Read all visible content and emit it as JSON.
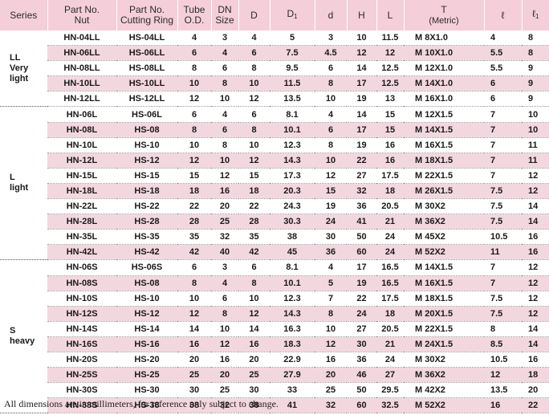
{
  "headers": {
    "series": "Series",
    "part_no_nut": [
      "Part No.",
      "Nut"
    ],
    "part_no_ring": [
      "Part No.",
      "Cutting Ring"
    ],
    "tube_od": [
      "Tube",
      "O.D."
    ],
    "dn_size": [
      "DN",
      "Size"
    ],
    "D": "D",
    "D1": {
      "base": "D",
      "sub": "1"
    },
    "d": "d",
    "H": "H",
    "L": "L",
    "T": [
      "T",
      "(Metric)"
    ],
    "l": "ℓ",
    "l1": {
      "base": "ℓ",
      "sub": "1"
    }
  },
  "groups": [
    {
      "series": [
        "LL",
        "Very",
        "light"
      ],
      "rows": [
        [
          "HN-04LL",
          "HS-04LL",
          "4",
          "3",
          "4",
          "5",
          "3",
          "10",
          "11.5",
          "M 8X1.0",
          "4",
          "8"
        ],
        [
          "HN-06LL",
          "HS-06LL",
          "6",
          "4",
          "6",
          "7.5",
          "4.5",
          "12",
          "12",
          "M 10X1.0",
          "5.5",
          "8"
        ],
        [
          "HN-08LL",
          "HS-08LL",
          "8",
          "6",
          "8",
          "9.5",
          "6",
          "14",
          "12.5",
          "M 12X1.0",
          "5.5",
          "9"
        ],
        [
          "HN-10LL",
          "HS-10LL",
          "10",
          "8",
          "10",
          "11.5",
          "8",
          "17",
          "12.5",
          "M 14X1.0",
          "6",
          "9"
        ],
        [
          "HN-12LL",
          "HS-12LL",
          "12",
          "10",
          "12",
          "13.5",
          "10",
          "19",
          "13",
          "M 16X1.0",
          "6",
          "9"
        ]
      ]
    },
    {
      "series": [
        "L",
        "light"
      ],
      "rows": [
        [
          "HN-06L",
          "HS-06L",
          "6",
          "4",
          "6",
          "8.1",
          "4",
          "14",
          "15",
          "M 12X1.5",
          "7",
          "10"
        ],
        [
          "HN-08L",
          "HS-08",
          "8",
          "6",
          "8",
          "10.1",
          "6",
          "17",
          "15",
          "M 14X1.5",
          "7",
          "10"
        ],
        [
          "HN-10L",
          "HS-10",
          "10",
          "8",
          "10",
          "12.3",
          "8",
          "19",
          "16",
          "M 16X1.5",
          "7",
          "11"
        ],
        [
          "HN-12L",
          "HS-12",
          "12",
          "10",
          "12",
          "14.3",
          "10",
          "22",
          "16",
          "M 18X1.5",
          "7",
          "11"
        ],
        [
          "HN-15L",
          "HS-15",
          "15",
          "12",
          "15",
          "17.3",
          "12",
          "27",
          "17.5",
          "M 22X1.5",
          "7",
          "12"
        ],
        [
          "HN-18L",
          "HS-18",
          "18",
          "16",
          "18",
          "20.3",
          "15",
          "32",
          "18",
          "M 26X1.5",
          "7.5",
          "12"
        ],
        [
          "HN-22L",
          "HS-22",
          "22",
          "20",
          "22",
          "24.3",
          "19",
          "36",
          "20.5",
          "M 30X2",
          "7.5",
          "14"
        ],
        [
          "HN-28L",
          "HS-28",
          "28",
          "25",
          "28",
          "30.3",
          "24",
          "41",
          "21",
          "M 36X2",
          "7.5",
          "14"
        ],
        [
          "HN-35L",
          "HS-35",
          "35",
          "32",
          "35",
          "38",
          "30",
          "50",
          "24",
          "M 45X2",
          "10.5",
          "16"
        ],
        [
          "HN-42L",
          "HS-42",
          "42",
          "40",
          "42",
          "45",
          "36",
          "60",
          "24",
          "M 52X2",
          "11",
          "16"
        ]
      ]
    },
    {
      "series": [
        "S",
        "heavy"
      ],
      "rows": [
        [
          "HN-06S",
          "HS-06S",
          "6",
          "3",
          "6",
          "8.1",
          "4",
          "17",
          "16.5",
          "M 14X1.5",
          "7",
          "12"
        ],
        [
          "HN-08S",
          "HS-08",
          "8",
          "4",
          "8",
          "10.1",
          "5",
          "19",
          "16.5",
          "M 16X1.5",
          "7",
          "12"
        ],
        [
          "HN-10S",
          "HS-10",
          "10",
          "6",
          "10",
          "12.3",
          "7",
          "22",
          "17.5",
          "M 18X1.5",
          "7.5",
          "12"
        ],
        [
          "HN-12S",
          "HS-12",
          "12",
          "8",
          "12",
          "14.3",
          "8",
          "24",
          "18",
          "M 20X1.5",
          "7.5",
          "12"
        ],
        [
          "HN-14S",
          "HS-14",
          "14",
          "10",
          "14",
          "16.3",
          "10",
          "27",
          "20.5",
          "M 22X1.5",
          "8",
          "14"
        ],
        [
          "HN-16S",
          "HS-16",
          "16",
          "12",
          "16",
          "18.3",
          "12",
          "30",
          "21",
          "M 24X1.5",
          "8.5",
          "14"
        ],
        [
          "HN-20S",
          "HS-20",
          "20",
          "16",
          "20",
          "22.9",
          "16",
          "36",
          "24",
          "M 30X2",
          "10.5",
          "16"
        ],
        [
          "HN-25S",
          "HS-25",
          "25",
          "20",
          "25",
          "27.9",
          "20",
          "46",
          "27",
          "M 36X2",
          "12",
          "18"
        ],
        [
          "HN-30S",
          "HS-30",
          "30",
          "25",
          "30",
          "33",
          "25",
          "50",
          "29.5",
          "M 42X2",
          "13.5",
          "20"
        ],
        [
          "HN-38S",
          "HS-38",
          "38",
          "32",
          "38",
          "41",
          "32",
          "60",
          "32.5",
          "M 52X2",
          "16",
          "22"
        ]
      ]
    }
  ],
  "footnote": "All dimensions are in millimeters, for reference only subject to change.",
  "colors": {
    "header_bg": "#f4cfda",
    "shade_bg": "#f3d7df"
  }
}
